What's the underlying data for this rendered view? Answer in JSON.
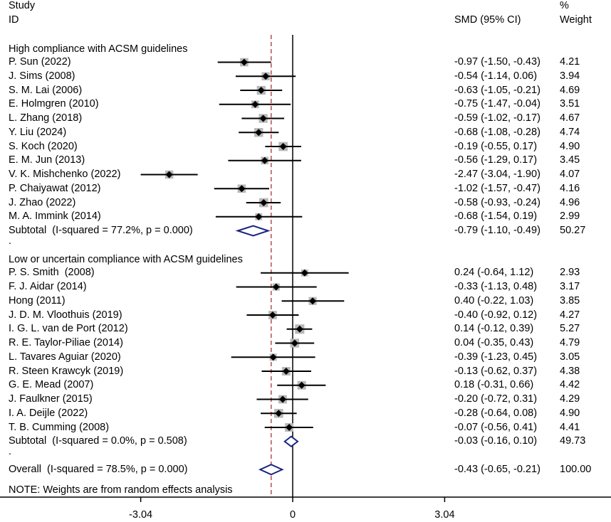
{
  "header": {
    "study_line1": "Study",
    "study_line2": "ID",
    "smd": "SMD (95% CI)",
    "weight_line1": "%",
    "weight_line2": "Weight"
  },
  "footnote": "NOTE: Weights are from random effects analysis",
  "separator": ".",
  "colors": {
    "line": "#000000",
    "box": "#b8b8b8",
    "diamond": "#1a237e",
    "overall_ref": "#b03030"
  },
  "chart_data": {
    "type": "forest",
    "x_ticks": [
      -3.04,
      0,
      3.04
    ],
    "x_tick_labels": [
      "-3.04",
      "0",
      "3.04"
    ],
    "xlim": [
      -3.72,
      6.2
    ],
    "overall_line": -0.43,
    "groups": [
      {
        "title": "High compliance with ACSM guidelines",
        "studies": [
          {
            "id": "P. Sun (2022)",
            "es": -0.97,
            "lo": -1.5,
            "hi": -0.43,
            "ci_text": "-0.97 (-1.50, -0.43)",
            "weight": 4.21,
            "weight_text": "4.21"
          },
          {
            "id": "J. Sims (2008)",
            "es": -0.54,
            "lo": -1.14,
            "hi": 0.06,
            "ci_text": "-0.54 (-1.14, 0.06)",
            "weight": 3.94,
            "weight_text": "3.94"
          },
          {
            "id": "S. M. Lai (2006)",
            "es": -0.63,
            "lo": -1.05,
            "hi": -0.21,
            "ci_text": "-0.63 (-1.05, -0.21)",
            "weight": 4.69,
            "weight_text": "4.69"
          },
          {
            "id": "E. Holmgren (2010)",
            "es": -0.75,
            "lo": -1.47,
            "hi": -0.04,
            "ci_text": "-0.75 (-1.47, -0.04)",
            "weight": 3.51,
            "weight_text": "3.51"
          },
          {
            "id": "L. Zhang (2018)",
            "es": -0.59,
            "lo": -1.02,
            "hi": -0.17,
            "ci_text": "-0.59 (-1.02, -0.17)",
            "weight": 4.67,
            "weight_text": "4.67"
          },
          {
            "id": "Y. Liu (2024)",
            "es": -0.68,
            "lo": -1.08,
            "hi": -0.28,
            "ci_text": "-0.68 (-1.08, -0.28)",
            "weight": 4.74,
            "weight_text": "4.74"
          },
          {
            "id": "S. Koch (2020)",
            "es": -0.19,
            "lo": -0.55,
            "hi": 0.17,
            "ci_text": "-0.19 (-0.55, 0.17)",
            "weight": 4.9,
            "weight_text": "4.90"
          },
          {
            "id": "E. M. Jun (2013)",
            "es": -0.56,
            "lo": -1.29,
            "hi": 0.17,
            "ci_text": "-0.56 (-1.29, 0.17)",
            "weight": 3.45,
            "weight_text": "3.45"
          },
          {
            "id": "V. K. Mishchenko (2022)",
            "es": -2.47,
            "lo": -3.04,
            "hi": -1.9,
            "ci_text": "-2.47 (-3.04, -1.90)",
            "weight": 4.07,
            "weight_text": "4.07"
          },
          {
            "id": "P. Chaiyawat (2012)",
            "es": -1.02,
            "lo": -1.57,
            "hi": -0.47,
            "ci_text": "-1.02 (-1.57, -0.47)",
            "weight": 4.16,
            "weight_text": "4.16"
          },
          {
            "id": "J. Zhao (2022)",
            "es": -0.58,
            "lo": -0.93,
            "hi": -0.24,
            "ci_text": "-0.58 (-0.93, -0.24)",
            "weight": 4.96,
            "weight_text": "4.96"
          },
          {
            "id": "M. A. Immink (2014)",
            "es": -0.68,
            "lo": -1.54,
            "hi": 0.19,
            "ci_text": "-0.68 (-1.54, 0.19)",
            "weight": 2.99,
            "weight_text": "2.99"
          }
        ],
        "subtotal": {
          "label": "Subtotal  (I-squared = 77.2%, p = 0.000)",
          "es": -0.79,
          "lo": -1.1,
          "hi": -0.49,
          "ci_text": "-0.79 (-1.10, -0.49)",
          "weight_text": "50.27"
        }
      },
      {
        "title": "Low or uncertain compliance with ACSM guidelines",
        "studies": [
          {
            "id": "P. S. Smith  (2008)",
            "es": 0.24,
            "lo": -0.64,
            "hi": 1.12,
            "ci_text": "0.24 (-0.64, 1.12)",
            "weight": 2.93,
            "weight_text": "2.93"
          },
          {
            "id": "F. J. Aidar (2014)",
            "es": -0.33,
            "lo": -1.13,
            "hi": 0.48,
            "ci_text": "-0.33 (-1.13, 0.48)",
            "weight": 3.17,
            "weight_text": "3.17"
          },
          {
            "id": "Hong (2011)",
            "es": 0.4,
            "lo": -0.22,
            "hi": 1.03,
            "ci_text": "0.40 (-0.22, 1.03)",
            "weight": 3.85,
            "weight_text": "3.85"
          },
          {
            "id": "J. D. M. Vloothuis (2019)",
            "es": -0.4,
            "lo": -0.92,
            "hi": 0.12,
            "ci_text": "-0.40 (-0.92, 0.12)",
            "weight": 4.27,
            "weight_text": "4.27"
          },
          {
            "id": "I. G. L. van de Port (2012)",
            "es": 0.14,
            "lo": -0.12,
            "hi": 0.39,
            "ci_text": "0.14 (-0.12, 0.39)",
            "weight": 5.27,
            "weight_text": "5.27"
          },
          {
            "id": "R. E. Taylor-Piliae (2014)",
            "es": 0.04,
            "lo": -0.35,
            "hi": 0.43,
            "ci_text": "0.04 (-0.35, 0.43)",
            "weight": 4.79,
            "weight_text": "4.79"
          },
          {
            "id": "L. Tavares Aguiar (2020)",
            "es": -0.39,
            "lo": -1.23,
            "hi": 0.45,
            "ci_text": "-0.39 (-1.23, 0.45)",
            "weight": 3.05,
            "weight_text": "3.05"
          },
          {
            "id": "R. Steen Krawcyk (2019)",
            "es": -0.13,
            "lo": -0.62,
            "hi": 0.37,
            "ci_text": "-0.13 (-0.62, 0.37)",
            "weight": 4.38,
            "weight_text": "4.38"
          },
          {
            "id": "G. E. Mead (2007)",
            "es": 0.18,
            "lo": -0.31,
            "hi": 0.66,
            "ci_text": "0.18 (-0.31, 0.66)",
            "weight": 4.42,
            "weight_text": "4.42"
          },
          {
            "id": "J. Faulkner (2015)",
            "es": -0.2,
            "lo": -0.72,
            "hi": 0.31,
            "ci_text": "-0.20 (-0.72, 0.31)",
            "weight": 4.29,
            "weight_text": "4.29"
          },
          {
            "id": "I. A. Deijle (2022)",
            "es": -0.28,
            "lo": -0.64,
            "hi": 0.08,
            "ci_text": "-0.28 (-0.64, 0.08)",
            "weight": 4.9,
            "weight_text": "4.90"
          },
          {
            "id": "T. B. Cumming (2008)",
            "es": -0.07,
            "lo": -0.56,
            "hi": 0.41,
            "ci_text": "-0.07 (-0.56, 0.41)",
            "weight": 4.41,
            "weight_text": "4.41"
          }
        ],
        "subtotal": {
          "label": "Subtotal  (I-squared = 0.0%, p = 0.508)",
          "es": -0.03,
          "lo": -0.16,
          "hi": 0.1,
          "ci_text": "-0.03 (-0.16, 0.10)",
          "weight_text": "49.73"
        }
      }
    ],
    "overall": {
      "label": "Overall  (I-squared = 78.5%, p = 0.000)",
      "es": -0.43,
      "lo": -0.65,
      "hi": -0.21,
      "ci_text": "-0.43 (-0.65, -0.21)",
      "weight_text": "100.00"
    }
  }
}
